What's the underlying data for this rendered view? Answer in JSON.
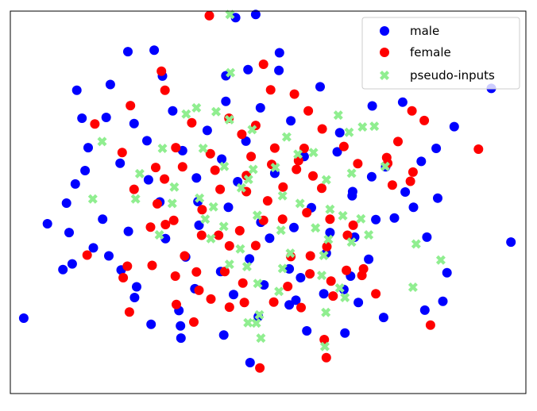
{
  "colors": {
    "male": "#0000ff",
    "female": "#ff0000",
    "pseudo_inputs": "#90ee90",
    "axes_frame": "#000000",
    "legend_border": "#cccccc",
    "background": "#ffffff"
  },
  "legend": {
    "placement": "top-right",
    "male_label": "male",
    "female_label": "female",
    "pseudo_label": "pseudo-inputs"
  },
  "chart_data": {
    "type": "scatter",
    "title": "",
    "xlabel": "",
    "ylabel": "",
    "xlim": [
      0,
      100
    ],
    "ylim": [
      0,
      100
    ],
    "ticks_visible": false,
    "grid": false,
    "series": [
      {
        "name": "male",
        "marker": "circle",
        "color": "#0000ff",
        "points": [
          [
            43.7,
            98.3
          ],
          [
            41.8,
            83.1
          ],
          [
            19.4,
            80.8
          ],
          [
            29.5,
            83.0
          ],
          [
            60.1,
            80.2
          ],
          [
            70.2,
            75.2
          ],
          [
            76.1,
            76.2
          ],
          [
            86.1,
            69.8
          ],
          [
            18.6,
            72.2
          ],
          [
            13.9,
            72.0
          ],
          [
            24.0,
            70.6
          ],
          [
            31.5,
            73.9
          ],
          [
            15.1,
            64.3
          ],
          [
            14.5,
            58.3
          ],
          [
            12.6,
            54.8
          ],
          [
            10.9,
            49.8
          ],
          [
            7.2,
            44.4
          ],
          [
            11.4,
            42.1
          ],
          [
            12.0,
            33.9
          ],
          [
            10.2,
            32.4
          ],
          [
            19.1,
            36.0
          ],
          [
            21.5,
            32.3
          ],
          [
            24.5,
            27.9
          ],
          [
            24.1,
            25.1
          ],
          [
            2.6,
            19.7
          ],
          [
            27.3,
            18.1
          ],
          [
            32.7,
            21.7
          ],
          [
            33.0,
            17.7
          ],
          [
            48.1,
            20.1
          ],
          [
            55.4,
            24.4
          ],
          [
            54.1,
            23.2
          ],
          [
            64.7,
            27.2
          ],
          [
            72.4,
            19.9
          ],
          [
            80.4,
            21.8
          ],
          [
            83.9,
            24.1
          ],
          [
            66.0,
            30.7
          ],
          [
            80.8,
            40.9
          ],
          [
            70.9,
            45.5
          ],
          [
            76.6,
            52.7
          ],
          [
            78.2,
            48.7
          ],
          [
            82.9,
            51.1
          ],
          [
            72.8,
            59.3
          ],
          [
            79.7,
            60.7
          ],
          [
            82.6,
            64.1
          ],
          [
            70.1,
            56.7
          ],
          [
            63.9,
            68.2
          ],
          [
            54.4,
            71.3
          ],
          [
            48.5,
            74.7
          ],
          [
            41.8,
            76.4
          ],
          [
            33.4,
            63.5
          ],
          [
            36.1,
            56.4
          ],
          [
            41.0,
            61.3
          ],
          [
            45.7,
            66.0
          ],
          [
            51.3,
            57.6
          ],
          [
            57.0,
            62.0
          ],
          [
            63.4,
            63.2
          ],
          [
            66.3,
            51.7
          ],
          [
            58.4,
            48.6
          ],
          [
            55.0,
            43.4
          ],
          [
            48.6,
            44.8
          ],
          [
            42.3,
            48.7
          ],
          [
            36.6,
            44.0
          ],
          [
            29.0,
            50.1
          ],
          [
            26.8,
            55.9
          ],
          [
            30.1,
            40.5
          ],
          [
            34.0,
            35.7
          ],
          [
            40.8,
            31.9
          ],
          [
            46.4,
            35.2
          ],
          [
            54.1,
            32.6
          ],
          [
            61.3,
            36.7
          ],
          [
            66.8,
            40.9
          ],
          [
            69.5,
            35.1
          ],
          [
            62.0,
            42.1
          ],
          [
            50.3,
            40.6
          ],
          [
            44.1,
            55.4
          ],
          [
            38.2,
            68.8
          ],
          [
            26.5,
            66.1
          ],
          [
            21.3,
            60.2
          ],
          [
            17.9,
            45.6
          ],
          [
            16.1,
            38.1
          ],
          [
            22.9,
            42.4
          ],
          [
            35.8,
            27.4
          ],
          [
            43.3,
            25.9
          ],
          [
            49.2,
            28.4
          ],
          [
            56.3,
            30.3
          ],
          [
            60.8,
            26.1
          ],
          [
            67.5,
            23.8
          ],
          [
            74.5,
            45.9
          ],
          [
            84.7,
            31.6
          ],
          [
            97.1,
            39.6
          ],
          [
            57.5,
            16.4
          ],
          [
            64.9,
            15.8
          ],
          [
            41.4,
            15.3
          ],
          [
            46.5,
            8.1
          ],
          [
            33.1,
            14.5
          ],
          [
            93.3,
            79.8
          ],
          [
            12.9,
            79.3
          ],
          [
            22.8,
            89.4
          ],
          [
            46.1,
            84.7
          ],
          [
            52.1,
            84.5
          ],
          [
            27.9,
            89.8
          ],
          [
            47.6,
            99.1
          ],
          [
            52.2,
            89.1
          ],
          [
            66.4,
            52.8
          ],
          [
            36.4,
            50.2
          ]
        ]
      },
      {
        "name": "female",
        "marker": "circle",
        "color": "#ff0000",
        "points": [
          [
            38.6,
            98.8
          ],
          [
            49.1,
            86.1
          ],
          [
            30.0,
            79.3
          ],
          [
            29.3,
            84.3
          ],
          [
            50.5,
            79.4
          ],
          [
            55.1,
            78.3
          ],
          [
            57.8,
            73.9
          ],
          [
            77.9,
            73.9
          ],
          [
            80.3,
            71.4
          ],
          [
            90.8,
            63.9
          ],
          [
            75.2,
            65.9
          ],
          [
            73.2,
            60.2
          ],
          [
            78.1,
            57.9
          ],
          [
            77.6,
            55.5
          ],
          [
            74.1,
            54.5
          ],
          [
            16.4,
            70.5
          ],
          [
            21.7,
            63.0
          ],
          [
            24.0,
            53.4
          ],
          [
            27.2,
            43.5
          ],
          [
            14.9,
            36.2
          ],
          [
            21.9,
            30.3
          ],
          [
            22.7,
            33.3
          ],
          [
            23.1,
            21.3
          ],
          [
            32.2,
            23.3
          ],
          [
            36.6,
            27.0
          ],
          [
            42.5,
            22.6
          ],
          [
            45.4,
            23.8
          ],
          [
            51.1,
            23.9
          ],
          [
            53.8,
            28.0
          ],
          [
            56.4,
            22.5
          ],
          [
            62.2,
            29.4
          ],
          [
            65.2,
            32.2
          ],
          [
            68.2,
            30.9
          ],
          [
            70.9,
            26.1
          ],
          [
            81.5,
            17.9
          ],
          [
            61.3,
            9.4
          ],
          [
            48.4,
            6.7
          ],
          [
            38.9,
            24.7
          ],
          [
            33.8,
            36.0
          ],
          [
            37.1,
            41.4
          ],
          [
            42.5,
            38.6
          ],
          [
            47.6,
            38.7
          ],
          [
            52.8,
            45.6
          ],
          [
            57.5,
            47.3
          ],
          [
            60.4,
            53.7
          ],
          [
            55.5,
            58.6
          ],
          [
            51.3,
            64.2
          ],
          [
            44.9,
            67.8
          ],
          [
            38.8,
            62.7
          ],
          [
            33.4,
            59.3
          ],
          [
            29.9,
            56.1
          ],
          [
            28.5,
            49.6
          ],
          [
            31.7,
            45.3
          ],
          [
            37.2,
            48.1
          ],
          [
            40.7,
            53.4
          ],
          [
            45.8,
            52.8
          ],
          [
            49.9,
            50.4
          ],
          [
            52.9,
            54.0
          ],
          [
            55.9,
            60.9
          ],
          [
            58.7,
            56.9
          ],
          [
            62.0,
            45.6
          ],
          [
            65.4,
            41.4
          ],
          [
            61.4,
            38.4
          ],
          [
            58.2,
            36.0
          ],
          [
            44.5,
            42.6
          ],
          [
            40.4,
            41.4
          ],
          [
            36.1,
            31.8
          ],
          [
            32.0,
            30.7
          ],
          [
            27.5,
            33.5
          ],
          [
            64.7,
            64.6
          ],
          [
            60.5,
            69.2
          ],
          [
            47.6,
            70.1
          ],
          [
            42.4,
            72.0
          ],
          [
            32.1,
            64.3
          ],
          [
            35.2,
            70.8
          ],
          [
            39.7,
            58.4
          ],
          [
            46.7,
            62.0
          ],
          [
            57.0,
            64.1
          ],
          [
            67.4,
            60.1
          ],
          [
            45.8,
            57.0
          ],
          [
            49.1,
            45.3
          ],
          [
            54.4,
            35.8
          ],
          [
            58.1,
            31.3
          ],
          [
            41.6,
            31.9
          ],
          [
            35.6,
            18.7
          ],
          [
            45.1,
            28.9
          ],
          [
            28.2,
            59.1
          ],
          [
            30.1,
            44.2
          ],
          [
            23.3,
            75.3
          ],
          [
            66.5,
            44.0
          ],
          [
            73.0,
            61.7
          ],
          [
            60.9,
            14.1
          ],
          [
            62.6,
            25.5
          ],
          [
            68.5,
            32.6
          ],
          [
            50.7,
            59.9
          ]
        ]
      },
      {
        "name": "pseudo-inputs",
        "marker": "x",
        "color": "#90ee90",
        "points": [
          [
            42.7,
            83.9
          ],
          [
            34.1,
            73.1
          ],
          [
            36.1,
            74.7
          ],
          [
            39.9,
            73.7
          ],
          [
            42.5,
            71.6
          ],
          [
            46.9,
            69.0
          ],
          [
            53.6,
            67.1
          ],
          [
            58.8,
            63.0
          ],
          [
            63.6,
            72.8
          ],
          [
            68.3,
            69.7
          ],
          [
            65.7,
            68.3
          ],
          [
            70.6,
            69.9
          ],
          [
            17.8,
            65.9
          ],
          [
            29.5,
            64.1
          ],
          [
            37.4,
            64.1
          ],
          [
            41.5,
            59.4
          ],
          [
            46.2,
            56.0
          ],
          [
            47.1,
            58.6
          ],
          [
            51.4,
            59.1
          ],
          [
            55.8,
            62.6
          ],
          [
            61.3,
            55.9
          ],
          [
            66.2,
            57.6
          ],
          [
            72.7,
            59.4
          ],
          [
            25.1,
            57.5
          ],
          [
            31.8,
            54.0
          ],
          [
            36.7,
            51.1
          ],
          [
            39.4,
            48.8
          ],
          [
            44.8,
            53.8
          ],
          [
            52.8,
            51.7
          ],
          [
            56.2,
            49.7
          ],
          [
            62.0,
            48.2
          ],
          [
            64.5,
            46.5
          ],
          [
            68.0,
            45.7
          ],
          [
            24.3,
            50.9
          ],
          [
            31.4,
            49.7
          ],
          [
            37.8,
            45.6
          ],
          [
            41.4,
            43.7
          ],
          [
            47.9,
            46.6
          ],
          [
            52.5,
            42.7
          ],
          [
            59.2,
            43.3
          ],
          [
            61.7,
            40.3
          ],
          [
            66.2,
            39.6
          ],
          [
            16.0,
            50.9
          ],
          [
            28.9,
            41.5
          ],
          [
            38.9,
            40.5
          ],
          [
            44.6,
            37.8
          ],
          [
            54.3,
            36.7
          ],
          [
            60.8,
            36.1
          ],
          [
            69.5,
            41.5
          ],
          [
            78.7,
            39.1
          ],
          [
            83.5,
            34.9
          ],
          [
            42.5,
            33.8
          ],
          [
            45.9,
            33.2
          ],
          [
            52.8,
            32.7
          ],
          [
            48.0,
            28.8
          ],
          [
            52.1,
            26.7
          ],
          [
            63.9,
            27.6
          ],
          [
            60.4,
            30.9
          ],
          [
            64.9,
            25.1
          ],
          [
            61.2,
            21.2
          ],
          [
            78.1,
            27.8
          ],
          [
            46.1,
            18.5
          ],
          [
            48.3,
            20.6
          ],
          [
            47.7,
            18.4
          ],
          [
            48.6,
            14.5
          ],
          [
            61.0,
            12.3
          ],
          [
            42.6,
            99.1
          ]
        ]
      }
    ]
  }
}
